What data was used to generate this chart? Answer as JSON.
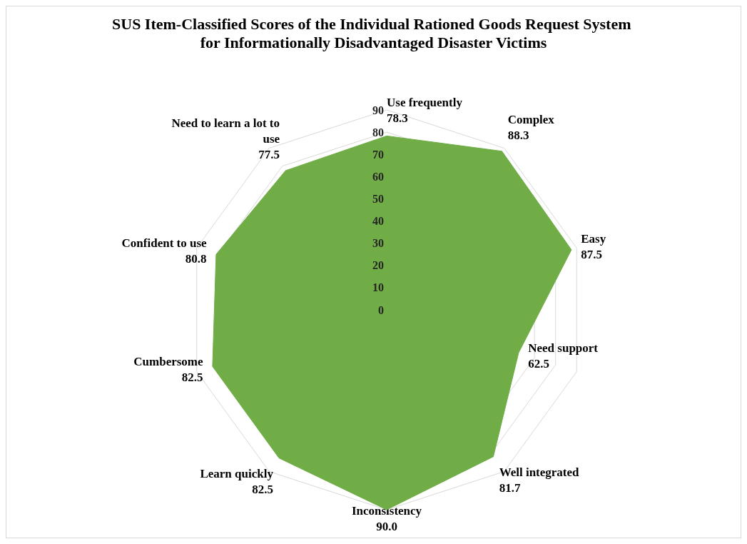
{
  "chart_data": {
    "type": "radar",
    "title": "SUS Item-Classified Scores of the Individual Rationed Goods Request System for Informationally Disadvantaged Disaster Victims",
    "categories": [
      "Use frequently",
      "Complex",
      "Easy",
      "Need support",
      "Well integrated",
      "Inconsistency",
      "Learn quickly",
      "Cumbersome",
      "Confident to use",
      "Need to learn a lot to use"
    ],
    "series": [
      {
        "color": "#70ad47",
        "values": [
          78.3,
          88.3,
          87.5,
          62.5,
          81.7,
          90.0,
          82.5,
          82.5,
          80.8,
          77.5
        ],
        "value_labels": [
          "78.3",
          "88.3",
          "87.5",
          "62.5",
          "81.7",
          "90.0",
          "82.5",
          "82.5",
          "80.8",
          "77.5"
        ]
      }
    ],
    "ylim": [
      0,
      90
    ],
    "yticks": [
      0,
      10,
      20,
      30,
      40,
      50,
      60,
      70,
      80,
      90
    ],
    "grid": true,
    "marker": "none"
  }
}
